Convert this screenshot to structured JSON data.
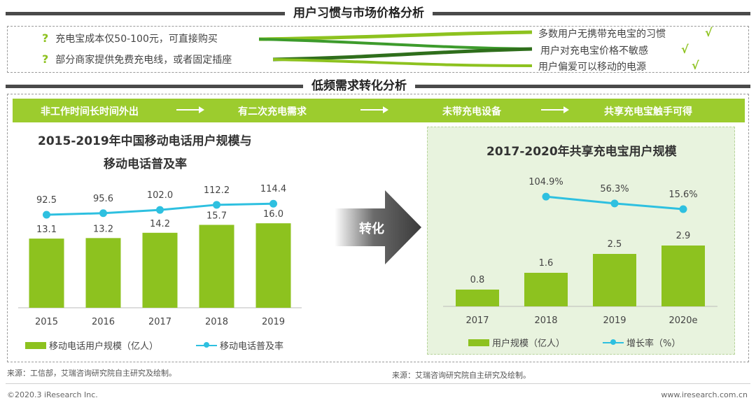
{
  "section1": {
    "title": "用户习惯与市场价格分析",
    "reasons": [
      "充电宝成本仅50-100元，可直接购买",
      "部分商家提供免费充电线，或者固定插座"
    ],
    "results": [
      "多数用户无携带充电宝的习惯",
      "用户对充电宝价格不敏感",
      "用户偏爱可以移动的电源"
    ],
    "qmark": "?",
    "check": "√"
  },
  "section2": {
    "title": "低频需求转化分析",
    "flow": [
      "非工作时间长时间外出",
      "有二次充电需求",
      "未带充电设备",
      "共享充电宝触手可得"
    ]
  },
  "arrow_label": "转化",
  "colors": {
    "bar": "#8dc21f",
    "line": "#2ec0e0",
    "flow": "#9ccc2e",
    "panel_right": "#e8f3de"
  },
  "chart_data": [
    {
      "type": "bar",
      "title_line1": "2015-2019年中国移动电话用户规模与",
      "title_line2": "移动电话普及率",
      "categories": [
        "2015",
        "2016",
        "2017",
        "2018",
        "2019"
      ],
      "series": [
        {
          "name": "移动电话用户规模（亿人）",
          "type": "bar",
          "values": [
            13.1,
            13.2,
            14.2,
            15.7,
            16.0
          ]
        },
        {
          "name": "移动电话普及率",
          "type": "line",
          "values": [
            92.5,
            95.6,
            102.0,
            112.2,
            114.4
          ]
        }
      ],
      "labels_bar": [
        "13.1",
        "13.2",
        "14.2",
        "15.7",
        "16.0"
      ],
      "labels_line": [
        "92.5",
        "95.6",
        "102.0",
        "112.2",
        "114.4"
      ],
      "grid": false,
      "legend": "bottom",
      "source": "来源：工信部，艾瑞咨询研究院自主研究及绘制。"
    },
    {
      "type": "bar",
      "title": "2017-2020年共享充电宝用户规模",
      "categories": [
        "2017",
        "2018",
        "2019",
        "2020e"
      ],
      "series": [
        {
          "name": "用户规模（亿人）",
          "type": "bar",
          "values": [
            0.8,
            1.6,
            2.5,
            2.9
          ]
        },
        {
          "name": "增长率（%）",
          "type": "line",
          "values": [
            null,
            104.9,
            56.3,
            15.6
          ]
        }
      ],
      "labels_bar": [
        "0.8",
        "1.6",
        "2.5",
        "2.9"
      ],
      "labels_line": [
        "",
        "104.9%",
        "56.3%",
        "15.6%"
      ],
      "grid": false,
      "legend": "bottom",
      "source": "来源：艾瑞咨询研究院自主研究及绘制。"
    }
  ],
  "footer": {
    "left": "©2020.3 iResearch Inc.",
    "right": "www.iresearch.com.cn"
  }
}
